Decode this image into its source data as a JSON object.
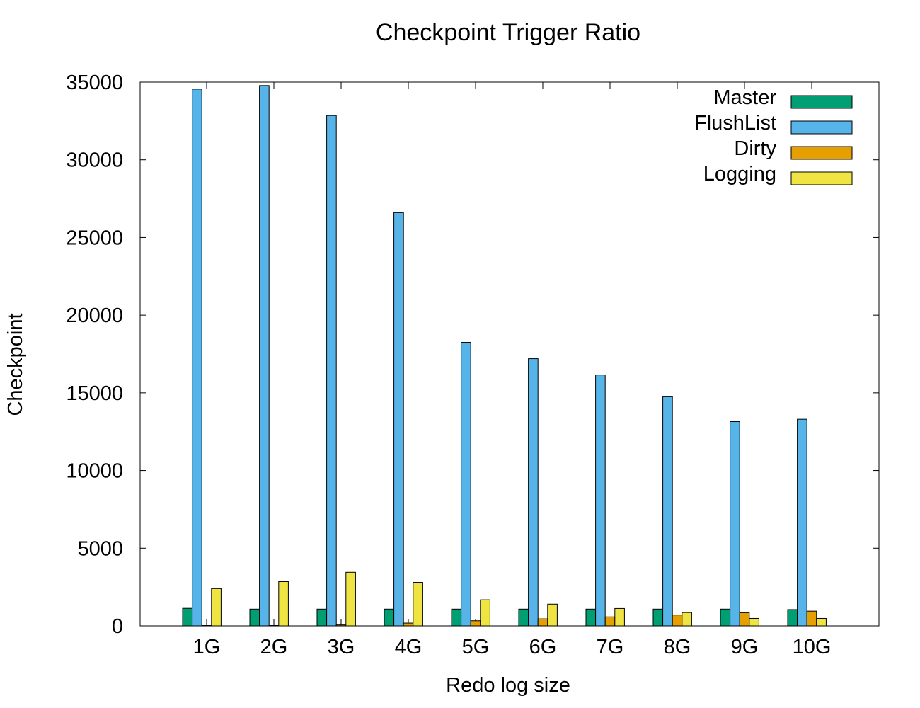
{
  "chart_data": {
    "type": "bar",
    "title": "Checkpoint Trigger Ratio",
    "xlabel": "Redo log size",
    "ylabel": "Checkpoint",
    "categories": [
      "1G",
      "2G",
      "3G",
      "4G",
      "5G",
      "6G",
      "7G",
      "8G",
      "9G",
      "10G"
    ],
    "ylim": [
      0,
      35000
    ],
    "yticks": [
      0,
      5000,
      10000,
      15000,
      20000,
      25000,
      30000,
      35000
    ],
    "grid": false,
    "legend_position": "top-right",
    "series": [
      {
        "name": "Master",
        "color": "#009e73",
        "values": [
          1130,
          1080,
          1080,
          1080,
          1080,
          1080,
          1080,
          1080,
          1080,
          1050
        ]
      },
      {
        "name": "FlushList",
        "color": "#56b4e9",
        "values": [
          34550,
          34780,
          32850,
          26600,
          18250,
          17200,
          16150,
          14750,
          13150,
          13300
        ]
      },
      {
        "name": "Dirty",
        "color": "#e69f00",
        "values": [
          0,
          0,
          60,
          180,
          330,
          450,
          580,
          700,
          850,
          950
        ]
      },
      {
        "name": "Logging",
        "color": "#f0e442",
        "values": [
          2400,
          2850,
          3450,
          2800,
          1680,
          1400,
          1120,
          860,
          480,
          480
        ]
      }
    ]
  }
}
